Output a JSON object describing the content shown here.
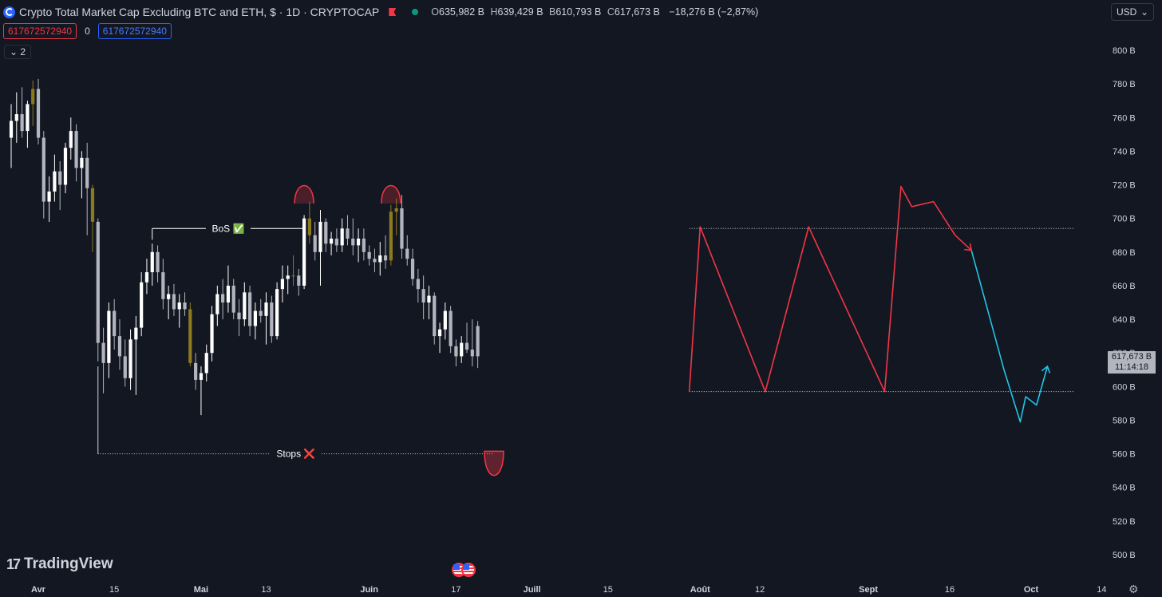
{
  "header": {
    "title": "Crypto Total Market Cap Excluding BTC and ETH, $ · 1D · CRYPTOCAP",
    "ohlc": {
      "o_label": "O",
      "o": "635,982 B",
      "h_label": "H",
      "h": "639,429 B",
      "b_label": "B",
      "b": "610,793 B",
      "c_label": "C",
      "c": "617,673 B",
      "change": "−18,276 B (−2,87%)"
    },
    "currency": "USD",
    "currency_icon": "chevron-down-icon"
  },
  "indicators": {
    "red_value": "617672572940",
    "zero": "0",
    "blue_value": "617672572940",
    "collapse_label": "2"
  },
  "brand": "TradingView",
  "colors": {
    "background": "#131722",
    "candle_up": "#ffffff",
    "candle_down": "#b2b5be",
    "highlight": "#8c7a1e",
    "projection_red": "#f23645",
    "projection_blue": "#22c4e6"
  },
  "price_tag": {
    "value": "617,673 B",
    "time": "11:14:18"
  },
  "chart_data": {
    "type": "candlestick",
    "title": "Crypto Total Market Cap Excluding BTC and ETH, $ · 1D · CRYPTOCAP",
    "ylim": [
      490,
      812
    ],
    "y_ticks": [
      500,
      520,
      540,
      560,
      580,
      600,
      620,
      640,
      660,
      680,
      700,
      720,
      740,
      760,
      780,
      800
    ],
    "y_tick_suffix": " B",
    "x_ticks": [
      {
        "label": "Avr",
        "date": "2024-04-01"
      },
      {
        "label": "15",
        "date": "2024-04-15"
      },
      {
        "label": "Mai",
        "date": "2024-05-01"
      },
      {
        "label": "13",
        "date": "2024-05-13"
      },
      {
        "label": "Juin",
        "date": "2024-06-01"
      },
      {
        "label": "17",
        "date": "2024-06-17"
      },
      {
        "label": "Juill",
        "date": "2024-07-01"
      },
      {
        "label": "15",
        "date": "2024-07-15"
      },
      {
        "label": "Août",
        "date": "2024-08-01"
      },
      {
        "label": "12",
        "date": "2024-08-12"
      },
      {
        "label": "Sept",
        "date": "2024-09-01"
      },
      {
        "label": "16",
        "date": "2024-09-16"
      },
      {
        "label": "Oct",
        "date": "2024-10-01"
      },
      {
        "label": "14",
        "date": "2024-10-14"
      }
    ],
    "candles": [
      {
        "date": "2024-03-27",
        "o": 748,
        "h": 768,
        "l": 730,
        "c": 758
      },
      {
        "date": "2024-03-28",
        "o": 758,
        "h": 775,
        "l": 745,
        "c": 762
      },
      {
        "date": "2024-03-29",
        "o": 762,
        "h": 778,
        "l": 748,
        "c": 752
      },
      {
        "date": "2024-03-30",
        "o": 752,
        "h": 770,
        "l": 742,
        "c": 768
      },
      {
        "date": "2024-03-31",
        "o": 768,
        "h": 782,
        "l": 755,
        "c": 777
      },
      {
        "date": "2024-04-01",
        "o": 777,
        "h": 783,
        "l": 744,
        "c": 748
      },
      {
        "date": "2024-04-02",
        "o": 748,
        "h": 752,
        "l": 700,
        "c": 710
      },
      {
        "date": "2024-04-03",
        "o": 710,
        "h": 725,
        "l": 698,
        "c": 716
      },
      {
        "date": "2024-04-04",
        "o": 716,
        "h": 738,
        "l": 710,
        "c": 728
      },
      {
        "date": "2024-04-05",
        "o": 728,
        "h": 734,
        "l": 705,
        "c": 720
      },
      {
        "date": "2024-04-06",
        "o": 720,
        "h": 745,
        "l": 715,
        "c": 742
      },
      {
        "date": "2024-04-07",
        "o": 742,
        "h": 760,
        "l": 735,
        "c": 752
      },
      {
        "date": "2024-04-08",
        "o": 752,
        "h": 756,
        "l": 722,
        "c": 730
      },
      {
        "date": "2024-04-09",
        "o": 730,
        "h": 740,
        "l": 712,
        "c": 736
      },
      {
        "date": "2024-04-10",
        "o": 736,
        "h": 745,
        "l": 690,
        "c": 718
      },
      {
        "date": "2024-04-11",
        "o": 718,
        "h": 720,
        "l": 680,
        "c": 698
      },
      {
        "date": "2024-04-12",
        "o": 698,
        "h": 700,
        "l": 615,
        "c": 626
      },
      {
        "date": "2024-04-13",
        "o": 626,
        "h": 635,
        "l": 596,
        "c": 614
      },
      {
        "date": "2024-04-14",
        "o": 614,
        "h": 650,
        "l": 605,
        "c": 645
      },
      {
        "date": "2024-04-15",
        "o": 645,
        "h": 652,
        "l": 622,
        "c": 630
      },
      {
        "date": "2024-04-16",
        "o": 630,
        "h": 640,
        "l": 610,
        "c": 618
      },
      {
        "date": "2024-04-17",
        "o": 618,
        "h": 628,
        "l": 600,
        "c": 605
      },
      {
        "date": "2024-04-18",
        "o": 605,
        "h": 634,
        "l": 598,
        "c": 628
      },
      {
        "date": "2024-04-19",
        "o": 628,
        "h": 642,
        "l": 595,
        "c": 635
      },
      {
        "date": "2024-04-20",
        "o": 635,
        "h": 668,
        "l": 630,
        "c": 662
      },
      {
        "date": "2024-04-21",
        "o": 662,
        "h": 676,
        "l": 655,
        "c": 668
      },
      {
        "date": "2024-04-22",
        "o": 668,
        "h": 685,
        "l": 660,
        "c": 680
      },
      {
        "date": "2024-04-23",
        "o": 680,
        "h": 684,
        "l": 662,
        "c": 668
      },
      {
        "date": "2024-04-24",
        "o": 668,
        "h": 676,
        "l": 646,
        "c": 652
      },
      {
        "date": "2024-04-25",
        "o": 652,
        "h": 660,
        "l": 640,
        "c": 655
      },
      {
        "date": "2024-04-26",
        "o": 655,
        "h": 661,
        "l": 642,
        "c": 646
      },
      {
        "date": "2024-04-27",
        "o": 646,
        "h": 655,
        "l": 635,
        "c": 650
      },
      {
        "date": "2024-04-28",
        "o": 650,
        "h": 656,
        "l": 642,
        "c": 646
      },
      {
        "date": "2024-04-29",
        "o": 646,
        "h": 650,
        "l": 612,
        "c": 614
      },
      {
        "date": "2024-04-30",
        "o": 614,
        "h": 620,
        "l": 598,
        "c": 604
      },
      {
        "date": "2024-05-01",
        "o": 604,
        "h": 612,
        "l": 583,
        "c": 608
      },
      {
        "date": "2024-05-02",
        "o": 608,
        "h": 625,
        "l": 603,
        "c": 620
      },
      {
        "date": "2024-05-03",
        "o": 620,
        "h": 648,
        "l": 615,
        "c": 643
      },
      {
        "date": "2024-05-04",
        "o": 643,
        "h": 660,
        "l": 636,
        "c": 655
      },
      {
        "date": "2024-05-05",
        "o": 655,
        "h": 664,
        "l": 640,
        "c": 650
      },
      {
        "date": "2024-05-06",
        "o": 650,
        "h": 672,
        "l": 644,
        "c": 660
      },
      {
        "date": "2024-05-07",
        "o": 660,
        "h": 664,
        "l": 640,
        "c": 644
      },
      {
        "date": "2024-05-08",
        "o": 644,
        "h": 652,
        "l": 630,
        "c": 640
      },
      {
        "date": "2024-05-09",
        "o": 640,
        "h": 662,
        "l": 636,
        "c": 656
      },
      {
        "date": "2024-05-10",
        "o": 656,
        "h": 660,
        "l": 630,
        "c": 636
      },
      {
        "date": "2024-05-11",
        "o": 636,
        "h": 650,
        "l": 628,
        "c": 645
      },
      {
        "date": "2024-05-12",
        "o": 645,
        "h": 652,
        "l": 638,
        "c": 642
      },
      {
        "date": "2024-05-13",
        "o": 642,
        "h": 656,
        "l": 625,
        "c": 650
      },
      {
        "date": "2024-05-14",
        "o": 650,
        "h": 654,
        "l": 626,
        "c": 630
      },
      {
        "date": "2024-05-15",
        "o": 630,
        "h": 662,
        "l": 628,
        "c": 658
      },
      {
        "date": "2024-05-16",
        "o": 658,
        "h": 672,
        "l": 650,
        "c": 664
      },
      {
        "date": "2024-05-17",
        "o": 664,
        "h": 672,
        "l": 655,
        "c": 666
      },
      {
        "date": "2024-05-18",
        "o": 666,
        "h": 678,
        "l": 660,
        "c": 666
      },
      {
        "date": "2024-05-19",
        "o": 666,
        "h": 670,
        "l": 654,
        "c": 660
      },
      {
        "date": "2024-05-20",
        "o": 660,
        "h": 702,
        "l": 658,
        "c": 700
      },
      {
        "date": "2024-05-21",
        "o": 700,
        "h": 710,
        "l": 685,
        "c": 690
      },
      {
        "date": "2024-05-22",
        "o": 690,
        "h": 698,
        "l": 675,
        "c": 680
      },
      {
        "date": "2024-05-23",
        "o": 680,
        "h": 705,
        "l": 660,
        "c": 698
      },
      {
        "date": "2024-05-24",
        "o": 698,
        "h": 700,
        "l": 680,
        "c": 685
      },
      {
        "date": "2024-05-25",
        "o": 685,
        "h": 692,
        "l": 678,
        "c": 688
      },
      {
        "date": "2024-05-26",
        "o": 688,
        "h": 694,
        "l": 680,
        "c": 684
      },
      {
        "date": "2024-05-27",
        "o": 684,
        "h": 700,
        "l": 680,
        "c": 694
      },
      {
        "date": "2024-05-28",
        "o": 694,
        "h": 702,
        "l": 684,
        "c": 688
      },
      {
        "date": "2024-05-29",
        "o": 688,
        "h": 700,
        "l": 678,
        "c": 684
      },
      {
        "date": "2024-05-30",
        "o": 684,
        "h": 694,
        "l": 674,
        "c": 688
      },
      {
        "date": "2024-05-31",
        "o": 688,
        "h": 694,
        "l": 675,
        "c": 680
      },
      {
        "date": "2024-06-01",
        "o": 680,
        "h": 684,
        "l": 672,
        "c": 676
      },
      {
        "date": "2024-06-02",
        "o": 676,
        "h": 682,
        "l": 668,
        "c": 674
      },
      {
        "date": "2024-06-03",
        "o": 674,
        "h": 686,
        "l": 666,
        "c": 678
      },
      {
        "date": "2024-06-04",
        "o": 678,
        "h": 690,
        "l": 670,
        "c": 675
      },
      {
        "date": "2024-06-05",
        "o": 675,
        "h": 708,
        "l": 672,
        "c": 704
      },
      {
        "date": "2024-06-06",
        "o": 704,
        "h": 712,
        "l": 690,
        "c": 706
      },
      {
        "date": "2024-06-07",
        "o": 706,
        "h": 714,
        "l": 676,
        "c": 682
      },
      {
        "date": "2024-06-08",
        "o": 682,
        "h": 690,
        "l": 672,
        "c": 676
      },
      {
        "date": "2024-06-09",
        "o": 676,
        "h": 682,
        "l": 660,
        "c": 664
      },
      {
        "date": "2024-06-10",
        "o": 664,
        "h": 670,
        "l": 650,
        "c": 658
      },
      {
        "date": "2024-06-11",
        "o": 658,
        "h": 666,
        "l": 640,
        "c": 650
      },
      {
        "date": "2024-06-12",
        "o": 650,
        "h": 660,
        "l": 640,
        "c": 654
      },
      {
        "date": "2024-06-13",
        "o": 654,
        "h": 656,
        "l": 625,
        "c": 630
      },
      {
        "date": "2024-06-14",
        "o": 630,
        "h": 638,
        "l": 620,
        "c": 634
      },
      {
        "date": "2024-06-15",
        "o": 634,
        "h": 650,
        "l": 628,
        "c": 645
      },
      {
        "date": "2024-06-16",
        "o": 645,
        "h": 648,
        "l": 620,
        "c": 624
      },
      {
        "date": "2024-06-17",
        "o": 624,
        "h": 628,
        "l": 612,
        "c": 618
      },
      {
        "date": "2024-06-18",
        "o": 618,
        "h": 630,
        "l": 614,
        "c": 626
      },
      {
        "date": "2024-06-19",
        "o": 626,
        "h": 638,
        "l": 620,
        "c": 622
      },
      {
        "date": "2024-06-20",
        "o": 622,
        "h": 640,
        "l": 612,
        "c": 618
      },
      {
        "date": "2024-06-21",
        "o": 636,
        "h": 639,
        "l": 611,
        "c": 618
      }
    ],
    "highlight_dates": [
      "2024-03-31",
      "2024-04-11",
      "2024-05-21",
      "2024-06-05",
      "2024-06-06",
      "2024-04-29",
      "2024-05-18"
    ],
    "annotations": [
      {
        "label": "BoS ✅",
        "type": "level",
        "value": 694,
        "from": "2024-04-22",
        "to": "2024-05-20"
      },
      {
        "label": "Stops ❌",
        "type": "level",
        "value": 560,
        "from": "2024-04-12",
        "to": "2024-06-24"
      }
    ],
    "arcs": [
      {
        "date": "2024-05-20",
        "value": 716,
        "direction": "up"
      },
      {
        "date": "2024-06-05",
        "value": 716,
        "direction": "up"
      },
      {
        "date": "2024-06-24",
        "value": 558,
        "direction": "down"
      }
    ],
    "range_levels": [
      {
        "value": 694,
        "from": "2024-07-30",
        "to": "2024-10-09"
      },
      {
        "value": 597,
        "from": "2024-07-30",
        "to": "2024-10-09"
      }
    ],
    "projection_red": [
      {
        "date": "2024-07-30",
        "value": 597
      },
      {
        "date": "2024-08-01",
        "value": 695
      },
      {
        "date": "2024-08-13",
        "value": 597
      },
      {
        "date": "2024-08-21",
        "value": 695
      },
      {
        "date": "2024-09-04",
        "value": 597
      },
      {
        "date": "2024-09-07",
        "value": 719
      },
      {
        "date": "2024-09-09",
        "value": 707
      },
      {
        "date": "2024-09-13",
        "value": 710
      },
      {
        "date": "2024-09-17",
        "value": 690
      },
      {
        "date": "2024-09-20",
        "value": 681
      }
    ],
    "projection_blue": [
      {
        "date": "2024-09-20",
        "value": 681
      },
      {
        "date": "2024-09-26",
        "value": 610
      },
      {
        "date": "2024-09-29",
        "value": 579
      },
      {
        "date": "2024-09-30",
        "value": 594
      },
      {
        "date": "2024-10-02",
        "value": 589
      },
      {
        "date": "2024-10-04",
        "value": 612
      }
    ]
  }
}
